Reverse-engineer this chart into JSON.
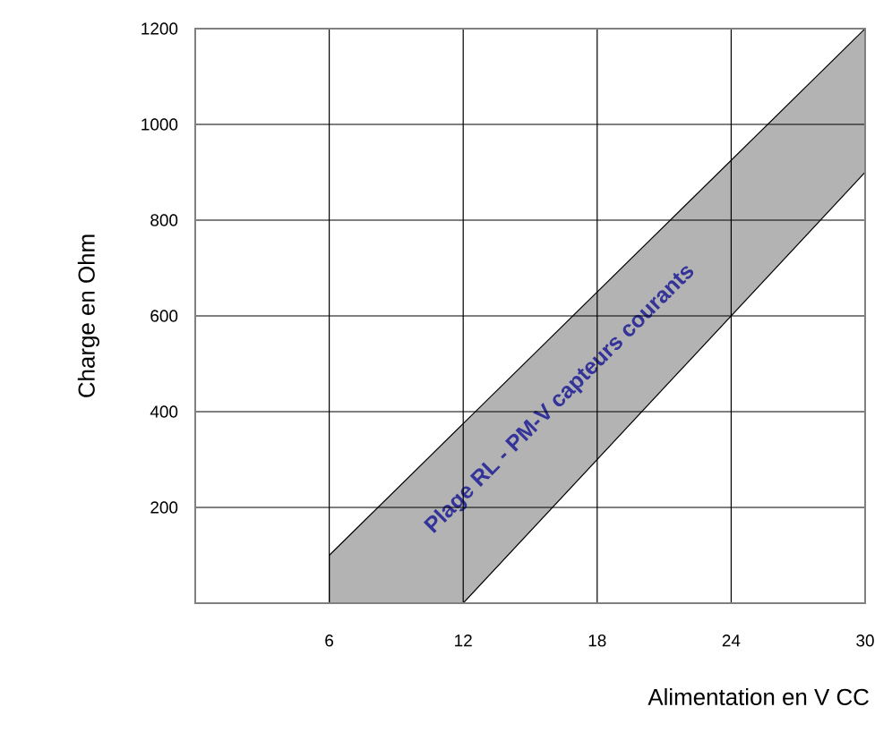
{
  "chart_data": {
    "type": "area",
    "xlabel": "Alimentation en V CC",
    "ylabel": "Charge en Ohm",
    "xlim": [
      0,
      30
    ],
    "ylim": [
      0,
      1200
    ],
    "xticks": [
      6,
      12,
      18,
      24,
      30
    ],
    "yticks": [
      200,
      400,
      600,
      800,
      1000,
      1200
    ],
    "grid": true,
    "x": [
      6,
      12,
      30
    ],
    "series": [
      {
        "color": "#b3b3b3",
        "values": [
          100,
          375,
          1200
        ]
      },
      {
        "color": "#ffffff",
        "values": [
          0,
          0,
          900
        ]
      }
    ],
    "annotations": [
      "Plage RL - PM-V capteurs courants"
    ]
  }
}
